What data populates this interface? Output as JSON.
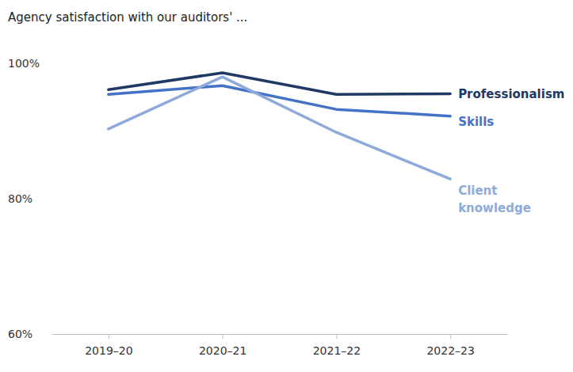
{
  "chart_data": {
    "type": "line",
    "title": "Agency satisfaction with our auditors' ...",
    "categories": [
      "2019–20",
      "2020–21",
      "2021–22",
      "2022–23"
    ],
    "series": [
      {
        "name": "Professionalism",
        "color": "#1f3864",
        "values": [
          96.1,
          98.6,
          95.4,
          95.5
        ]
      },
      {
        "name": "Skills",
        "color": "#4472c4",
        "values": [
          95.4,
          96.7,
          93.2,
          92.2
        ]
      },
      {
        "name": "Client knowledge",
        "color": "#8eaadb",
        "values": [
          90.3,
          98.0,
          89.8,
          82.9
        ]
      }
    ],
    "ylim": [
      60,
      100
    ],
    "yticks": [
      {
        "value": 60,
        "label": "60%"
      },
      {
        "value": 80,
        "label": "80%"
      },
      {
        "value": 100,
        "label": "100%"
      }
    ],
    "grid": false
  }
}
